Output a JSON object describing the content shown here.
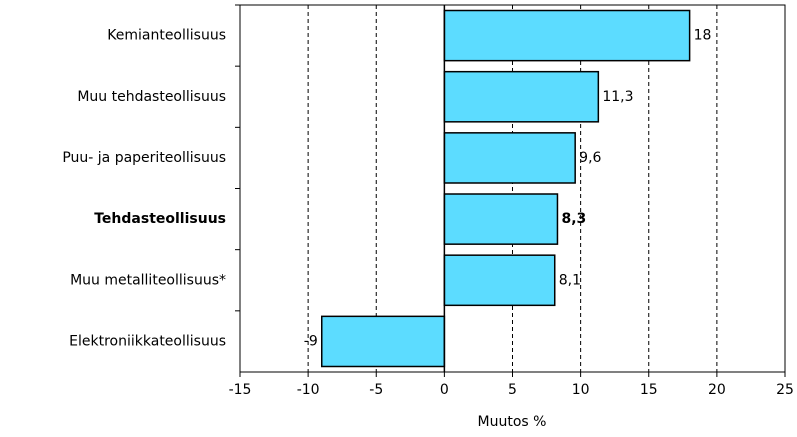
{
  "chart_data": {
    "type": "bar",
    "orientation": "horizontal",
    "categories": [
      "Kemianteollisuus",
      "Muu tehdasteollisuus",
      "Puu- ja paperiteollisuus",
      "Tehdasteollisuus",
      "Muu metalliteollisuus*",
      "Elektroniikkateollisuus"
    ],
    "values": [
      18,
      11.3,
      9.6,
      8.3,
      8.1,
      -9
    ],
    "value_labels": [
      "18",
      "11,3",
      "9,6",
      "8,3",
      "8,1",
      "-9"
    ],
    "bold_categories": [
      3
    ],
    "color": "#5cdcff",
    "xlim": [
      -15,
      25
    ],
    "xticks": [
      -15,
      -10,
      -5,
      0,
      5,
      10,
      15,
      20,
      25
    ],
    "xlabel": "Muutos %",
    "grid": true
  }
}
